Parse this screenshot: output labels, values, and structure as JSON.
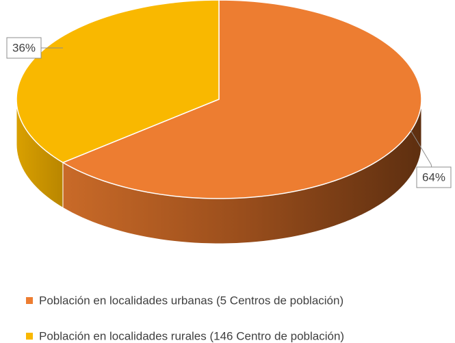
{
  "chart_data": {
    "type": "pie",
    "categories": [
      "Población en localidades urbanas (5 Centros de población)",
      "Población en localidades rurales (146 Centro de población)"
    ],
    "values": [
      64,
      36
    ],
    "value_labels": [
      "64%",
      "36%"
    ],
    "colors": [
      "#ED7D31",
      "#F9B800"
    ],
    "legend": "bottom"
  }
}
